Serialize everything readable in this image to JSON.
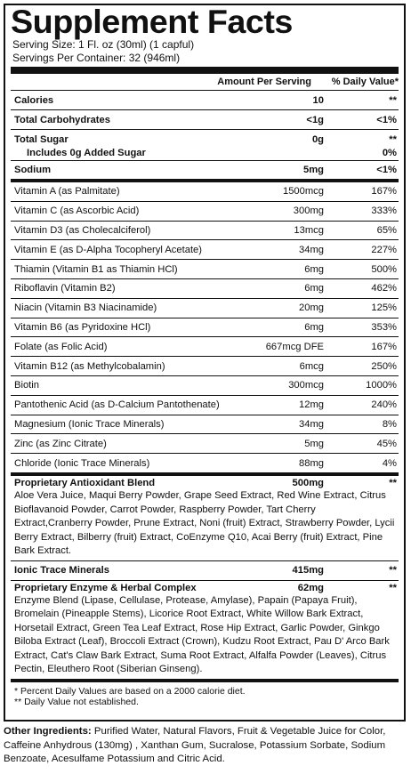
{
  "title": "Supplement Facts",
  "serving_size": "Serving Size: 1 Fl. oz (30ml) (1 capful)",
  "servings_per_container": "Servings Per Container: 32 (946ml)",
  "header": {
    "amount": "Amount Per Serving",
    "dv": "% Daily Value*"
  },
  "top_rows": [
    {
      "name": "Calories",
      "amount": "10",
      "dv": "**"
    },
    {
      "name": "Total Carbohydrates",
      "amount": "<1g",
      "dv": "<1%"
    },
    {
      "name": "Total Sugar",
      "amount": "0g",
      "dv": "**"
    },
    {
      "name": "Includes 0g Added Sugar",
      "amount": "",
      "dv": "0%"
    },
    {
      "name": "Sodium",
      "amount": "5mg",
      "dv": "<1%"
    }
  ],
  "vitamins": [
    {
      "name": "Vitamin A (as Palmitate)",
      "amount": "1500mcg",
      "dv": "167%"
    },
    {
      "name": "Vitamin C (as Ascorbic Acid)",
      "amount": "300mg",
      "dv": "333%"
    },
    {
      "name": "Vitamin D3 (as Cholecalciferol)",
      "amount": "13mcg",
      "dv": "65%"
    },
    {
      "name": "Vitamin E (as D-Alpha Tocopheryl Acetate)",
      "amount": "34mg",
      "dv": "227%"
    },
    {
      "name": "Thiamin (Vitamin B1 as Thiamin HCl)",
      "amount": "6mg",
      "dv": "500%"
    },
    {
      "name": "Riboflavin (Vitamin B2)",
      "amount": "6mg",
      "dv": "462%"
    },
    {
      "name": "Niacin (Vitamin B3 Niacinamide)",
      "amount": "20mg",
      "dv": "125%"
    },
    {
      "name": "Vitamin B6 (as Pyridoxine HCl)",
      "amount": "6mg",
      "dv": "353%"
    },
    {
      "name": "Folate (as Folic Acid)",
      "amount": "667mcg DFE",
      "dv": "167%"
    },
    {
      "name": "Vitamin B12 (as Methylcobalamin)",
      "amount": "6mcg",
      "dv": "250%"
    },
    {
      "name": "Biotin",
      "amount": "300mcg",
      "dv": "1000%"
    },
    {
      "name": "Pantothenic Acid (as D-Calcium Pantothenate)",
      "amount": "12mg",
      "dv": "240%"
    },
    {
      "name": "Magnesium (Ionic Trace Minerals)",
      "amount": "34mg",
      "dv": "8%"
    },
    {
      "name": "Zinc (as Zinc Citrate)",
      "amount": "5mg",
      "dv": "45%"
    },
    {
      "name": "Chloride (Ionic Trace Minerals)",
      "amount": "88mg",
      "dv": "4%"
    }
  ],
  "antioxidant": {
    "name": "Proprietary Antioxidant Blend",
    "amount": "500mg",
    "dv": "**",
    "ingredients": "Aloe Vera Juice, Maqui Berry Powder, Grape Seed Extract, Red Wine Extract, Citrus Bioflavanoid Powder, Carrot Powder, Raspberry Powder, Tart Cherry Extract,Cranberry Powder, Prune Extract, Noni (fruit) Extract, Strawberry Powder, Lycii Berry Extract, Bilberry (fruit) Extract, CoEnzyme Q10, Acai Berry (fruit) Extract, Pine Bark Extract."
  },
  "ionic": {
    "name": "Ionic Trace Minerals",
    "amount": "415mg",
    "dv": "**"
  },
  "enzyme": {
    "name": "Proprietary Enzyme & Herbal Complex",
    "amount": "62mg",
    "dv": "**",
    "ingredients": "Enzyme Blend (Lipase, Cellulase, Protease, Amylase), Papain (Papaya Fruit), Bromelain (Pineapple Stems), Licorice Root Extract, White Willow Bark Extract, Horsetail Extract, Green Tea Leaf Extract, Rose Hip Extract, Garlic Powder, Ginkgo Biloba Extract (Leaf), Broccoli Extract (Crown), Kudzu Root Extract, Pau D' Arco Bark Extract, Cat's Claw Bark Extract, Suma Root Extract, Alfalfa Powder (Leaves), Citrus Pectin, Eleuthero Root (Siberian Ginseng)."
  },
  "footnotes": [
    "* Percent Daily Values are based on a 2000 calorie diet.",
    "** Daily Value not established."
  ],
  "other": {
    "label": "Other Ingredients:",
    "text": " Purified Water, Natural Flavors, Fruit & Vegetable Juice for Color, Caffeine Anhydrous (130mg) , Xanthan Gum, Sucralose, Potassium Sorbate, Sodium Benzoate, Acesulfame Potassium and Citric Acid."
  }
}
